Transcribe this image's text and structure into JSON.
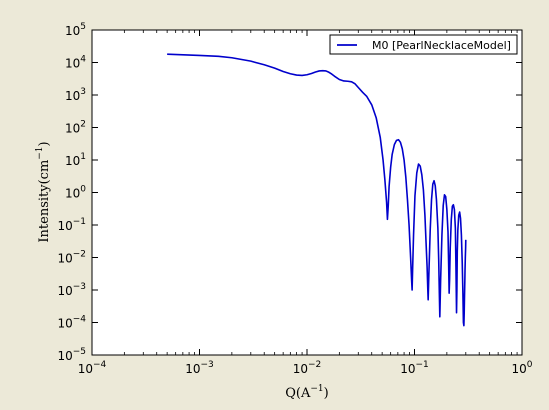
{
  "chart_data": {
    "type": "line",
    "xscale": "log",
    "yscale": "log",
    "xlim": [
      0.0001,
      1
    ],
    "ylim": [
      1e-05,
      100000
    ],
    "x_ticks": [
      "10^-4",
      "10^-3",
      "10^-2",
      "10^-1",
      "10^0"
    ],
    "y_ticks": [
      "10^-5",
      "10^-4",
      "10^-3",
      "10^-2",
      "10^-1",
      "10^0",
      "10^1",
      "10^2",
      "10^3",
      "10^4",
      "10^5"
    ],
    "xlabel": {
      "base": "Q(A",
      "exp": "−1",
      "close": ")"
    },
    "ylabel": {
      "base": "Intensity(cm",
      "exp": "−1",
      "close": ")"
    },
    "legend": {
      "position": "top-right"
    },
    "series": [
      {
        "name": "M0 [PearlNecklaceModel]",
        "color": "#0000cc",
        "x": [
          0.0005,
          0.001,
          0.0015,
          0.002,
          0.003,
          0.004,
          0.005,
          0.006,
          0.007,
          0.008,
          0.009,
          0.01,
          0.011,
          0.012,
          0.013,
          0.014,
          0.015,
          0.016,
          0.017,
          0.018,
          0.02,
          0.022,
          0.024,
          0.026,
          0.028,
          0.03,
          0.033,
          0.036,
          0.04,
          0.044,
          0.048,
          0.051,
          0.053,
          0.055,
          0.056,
          0.057,
          0.058,
          0.06,
          0.062,
          0.065,
          0.068,
          0.071,
          0.074,
          0.077,
          0.08,
          0.083,
          0.086,
          0.089,
          0.092,
          0.094,
          0.095,
          0.096,
          0.098,
          0.101,
          0.105,
          0.109,
          0.113,
          0.117,
          0.121,
          0.125,
          0.128,
          0.131,
          0.133,
          0.134,
          0.136,
          0.14,
          0.144,
          0.148,
          0.152,
          0.156,
          0.16,
          0.165,
          0.168,
          0.17,
          0.172,
          0.175,
          0.18,
          0.185,
          0.19,
          0.195,
          0.2,
          0.205,
          0.208,
          0.21,
          0.212,
          0.215,
          0.22,
          0.225,
          0.23,
          0.235,
          0.24,
          0.243,
          0.246,
          0.248,
          0.25,
          0.253,
          0.258,
          0.263,
          0.268,
          0.273,
          0.278,
          0.282,
          0.285,
          0.288,
          0.29,
          0.292,
          0.294,
          0.295,
          0.297,
          0.299,
          0.3
        ],
        "y": [
          18000,
          16500,
          15500,
          14000,
          11000,
          8500,
          6700,
          5300,
          4500,
          4100,
          4000,
          4200,
          4600,
          5100,
          5500,
          5600,
          5500,
          5000,
          4400,
          3800,
          3000,
          2700,
          2650,
          2550,
          2200,
          1700,
          1200,
          900,
          500,
          200,
          50,
          10,
          2.5,
          0.5,
          0.15,
          0.4,
          1.5,
          6,
          15,
          30,
          40,
          42,
          35,
          22,
          10,
          3,
          0.6,
          0.1,
          0.01,
          0.002,
          0.001,
          0.004,
          0.05,
          0.8,
          4,
          7.5,
          6.5,
          3.5,
          1.2,
          0.2,
          0.03,
          0.005,
          0.001,
          0.0005,
          0.003,
          0.07,
          0.6,
          1.8,
          2.3,
          1.6,
          0.6,
          0.08,
          0.008,
          0.001,
          0.00015,
          0.002,
          0.05,
          0.4,
          0.85,
          0.75,
          0.3,
          0.06,
          0.005,
          0.0008,
          0.002,
          0.02,
          0.15,
          0.38,
          0.42,
          0.3,
          0.08,
          0.005,
          0.0002,
          0.001,
          0.015,
          0.07,
          0.2,
          0.25,
          0.16,
          0.05,
          0.007,
          0.0008,
          0.0001,
          8e-05,
          0.0002,
          0.0007,
          0.002,
          0.004,
          0.01,
          0.02,
          0.035
        ]
      }
    ]
  }
}
